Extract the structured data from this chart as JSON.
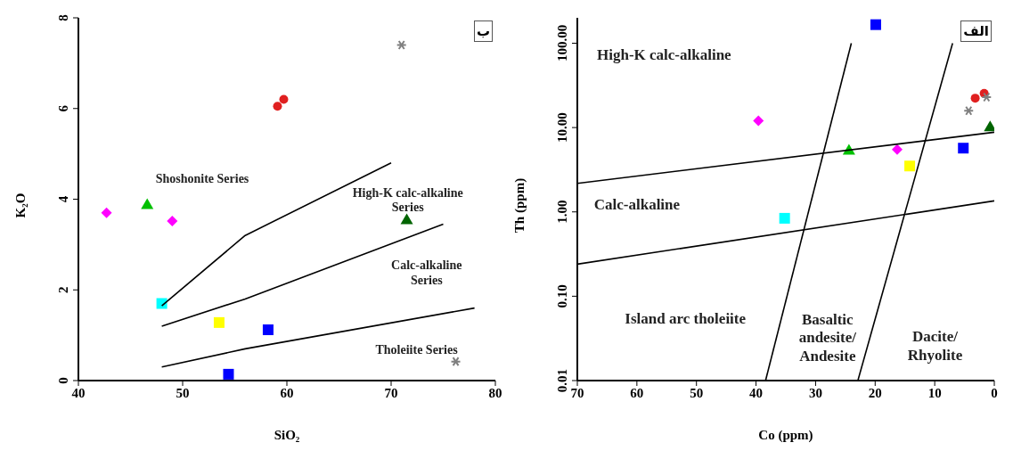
{
  "chart_data": [
    {
      "type": "scatter",
      "xlabel": "SiO₂",
      "ylabel": "K₂O",
      "xlim": [
        40,
        80
      ],
      "ylim": [
        0,
        8
      ],
      "xticks": [
        40,
        50,
        60,
        70,
        80
      ],
      "yticks": [
        0,
        2,
        4,
        6,
        8
      ],
      "grid": false,
      "legend": false,
      "annotations": [
        "ب",
        "Shoshonite Series",
        "High-K calc-alkaline\nSeries",
        "Calc-alkaline\nSeries",
        "Tholeiite Series"
      ],
      "series": [
        {
          "type": "line",
          "color": "#000000",
          "marker": "none",
          "x": [
            48,
            56,
            70
          ],
          "values": [
            1.65,
            3.2,
            4.8
          ]
        },
        {
          "type": "line",
          "color": "#000000",
          "marker": "none",
          "x": [
            48,
            56,
            75
          ],
          "values": [
            1.2,
            1.8,
            3.45
          ]
        },
        {
          "type": "line",
          "color": "#000000",
          "marker": "none",
          "x": [
            48,
            56,
            78
          ],
          "values": [
            0.3,
            0.7,
            1.6
          ]
        },
        {
          "color": "#ff00ff",
          "marker": "diamond",
          "x": [
            42.7,
            49
          ],
          "values": [
            3.7,
            3.52
          ]
        },
        {
          "color": "#00c000",
          "marker": "triangle",
          "x": [
            46.6
          ],
          "values": [
            3.88
          ]
        },
        {
          "color": "#e02020",
          "marker": "circle",
          "x": [
            59.1,
            59.7
          ],
          "values": [
            6.05,
            6.2
          ]
        },
        {
          "color": "#808080",
          "marker": "cross",
          "x": [
            71,
            76.2
          ],
          "values": [
            7.4,
            0.42
          ]
        },
        {
          "color": "#006400",
          "marker": "triangle",
          "x": [
            71.5
          ],
          "values": [
            3.55
          ]
        },
        {
          "color": "#00ffff",
          "marker": "square",
          "x": [
            48
          ],
          "values": [
            1.7
          ]
        },
        {
          "color": "#ffff00",
          "marker": "square",
          "x": [
            53.5
          ],
          "values": [
            1.28
          ]
        },
        {
          "color": "#0000ff",
          "marker": "square",
          "x": [
            58.2,
            54.4
          ],
          "values": [
            1.12,
            0.14
          ]
        }
      ]
    },
    {
      "type": "scatter",
      "xlabel": "Co (ppm)",
      "ylabel": "Th (ppm)",
      "log": true,
      "xlim": [
        70,
        0
      ],
      "ylim": [
        0.01,
        200
      ],
      "xticks": [
        70,
        60,
        50,
        40,
        30,
        20,
        10,
        0
      ],
      "yticks": [
        {
          "value": 0.01,
          "label": "0.01"
        },
        {
          "value": 0.1,
          "label": "0.10"
        },
        {
          "value": 1,
          "label": "1.00"
        },
        {
          "value": 10,
          "label": "10.00"
        },
        {
          "value": 100,
          "label": "100.00"
        }
      ],
      "grid": false,
      "legend": false,
      "annotations": [
        "الف",
        "High-K calc-alkaline",
        "Calc-alkaline",
        "Island arc tholeiite",
        "Basaltic\nandesite/\nAndesite",
        "Dacite/\nRhyolite"
      ],
      "series": [
        {
          "type": "line",
          "color": "#000000",
          "marker": "none",
          "x": [
            70,
            0
          ],
          "values": [
            2.18,
            8.8
          ]
        },
        {
          "type": "line",
          "color": "#000000",
          "marker": "none",
          "x": [
            70,
            0
          ],
          "values": [
            0.24,
            1.35
          ]
        },
        {
          "type": "line",
          "color": "#000000",
          "marker": "none",
          "x": [
            38.4,
            24
          ],
          "values": [
            0.01,
            100
          ]
        },
        {
          "type": "line",
          "color": "#000000",
          "marker": "none",
          "x": [
            22.9,
            7
          ],
          "values": [
            0.01,
            100
          ]
        },
        {
          "color": "#0000ff",
          "marker": "square",
          "x": [
            19.9,
            5.2
          ],
          "values": [
            166,
            5.7
          ]
        },
        {
          "color": "#ff00ff",
          "marker": "diamond",
          "x": [
            39.6,
            16.3
          ],
          "values": [
            12,
            5.5
          ]
        },
        {
          "color": "#00c000",
          "marker": "triangle",
          "x": [
            24.4
          ],
          "values": [
            5.4
          ]
        },
        {
          "color": "#ffff00",
          "marker": "square",
          "x": [
            14.2
          ],
          "values": [
            3.5
          ]
        },
        {
          "color": "#00ffff",
          "marker": "square",
          "x": [
            35.2
          ],
          "values": [
            0.84
          ]
        },
        {
          "color": "#e02020",
          "marker": "circle",
          "x": [
            3.2,
            1.7
          ],
          "values": [
            22.3,
            25.4
          ]
        },
        {
          "color": "#808080",
          "marker": "cross",
          "x": [
            4.3,
            1.3
          ],
          "values": [
            15.8,
            22.9
          ]
        },
        {
          "color": "#006400",
          "marker": "triangle",
          "x": [
            0.7
          ],
          "values": [
            10.2
          ]
        }
      ]
    }
  ]
}
